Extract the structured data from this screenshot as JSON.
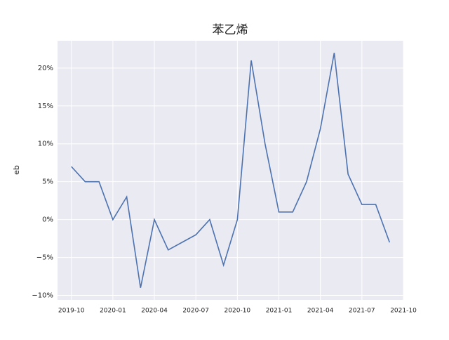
{
  "chart_data": {
    "type": "line",
    "title": "苯乙烯",
    "ylabel": "eb",
    "x": [
      "2019-10",
      "2019-11",
      "2019-12",
      "2020-01",
      "2020-02",
      "2020-03",
      "2020-04",
      "2020-05",
      "2020-06",
      "2020-07",
      "2020-08",
      "2020-09",
      "2020-10",
      "2020-11",
      "2020-12",
      "2021-01",
      "2021-02",
      "2021-03",
      "2021-04",
      "2021-05",
      "2021-06",
      "2021-07",
      "2021-08",
      "2021-09"
    ],
    "series": [
      {
        "name": "eb",
        "color": "#4c72b0",
        "values": [
          7,
          5,
          5,
          0,
          3,
          -9,
          0,
          -4,
          -3,
          -2,
          0,
          -6,
          0,
          21,
          10,
          1,
          1,
          5,
          12,
          22,
          6,
          2,
          2,
          -3
        ]
      }
    ],
    "xlim": [
      "2019-09",
      "2021-10"
    ],
    "xticks": [
      "2019-10",
      "2020-01",
      "2020-04",
      "2020-07",
      "2020-10",
      "2021-01",
      "2021-04",
      "2021-07",
      "2021-10"
    ],
    "ylim": [
      -10.6,
      23.6
    ],
    "yticks": [
      {
        "value": -10,
        "label": "−10%"
      },
      {
        "value": -5,
        "label": "−5%"
      },
      {
        "value": 0,
        "label": "0%"
      },
      {
        "value": 5,
        "label": "5%"
      },
      {
        "value": 10,
        "label": "10%"
      },
      {
        "value": 15,
        "label": "15%"
      },
      {
        "value": 20,
        "label": "20%"
      }
    ],
    "grid": true
  }
}
